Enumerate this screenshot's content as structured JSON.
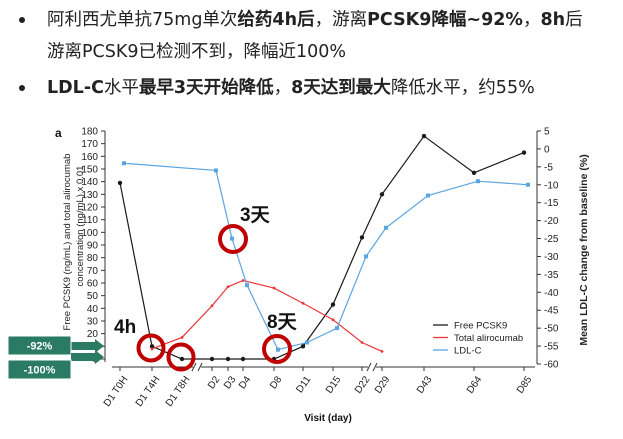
{
  "bullets": [
    {
      "line1": [
        {
          "text": "阿利西尤单抗75mg单次",
          "bold": false
        },
        {
          "text": "给药4h后",
          "bold": true
        },
        {
          "text": "，游离",
          "bold": false
        },
        {
          "text": "PCSK9降幅~92%",
          "bold": true
        },
        {
          "text": "，",
          "bold": false
        },
        {
          "text": "8h",
          "bold": true
        },
        {
          "text": "后",
          "bold": false
        }
      ],
      "line2": "游离PCSK9已检测不到，降幅近100%"
    },
    {
      "line1": [
        {
          "text": "LDL-C",
          "bold": true
        },
        {
          "text": "水平",
          "bold": false
        },
        {
          "text": "最早3天开始降低",
          "bold": true
        },
        {
          "text": "，",
          "bold": false
        },
        {
          "text": "8天达到最大",
          "bold": true
        },
        {
          "text": "降低水平，约55%",
          "bold": false
        }
      ]
    }
  ],
  "chart_data": {
    "type": "line",
    "panel_label": "a",
    "categories": [
      "D1 T0H",
      "D1 T4H",
      "D1 T8H",
      "D2",
      "D3",
      "D4",
      "D8",
      "D11",
      "D15",
      "D22",
      "D29",
      "D43",
      "D64",
      "D85"
    ],
    "xlabel": "Visit (day)",
    "ylabel_left_line1": "Free PCSK9 (ng/mL) and total alirocumab",
    "ylabel_left_line2": "concentration (ng/mL) x 0.01",
    "ylabel_right": "Mean LDL-C change from baseline (%)",
    "ylim_left": [
      0,
      180
    ],
    "ylim_right": [
      -60,
      5
    ],
    "yticks_left": [
      0,
      10,
      20,
      30,
      40,
      50,
      60,
      70,
      80,
      90,
      100,
      110,
      120,
      130,
      140,
      150,
      160,
      170,
      180
    ],
    "yticks_right": [
      5,
      0,
      -5,
      -10,
      -15,
      -20,
      -25,
      -30,
      -35,
      -40,
      -45,
      -50,
      -55,
      -60
    ],
    "grid": false,
    "legend_position": "lower-right",
    "series": [
      {
        "name": "Free PCSK9",
        "axis": "left",
        "color": "#1a1a1a",
        "marker": "circle",
        "values": [
          139,
          10,
          0,
          0,
          0,
          0,
          0,
          10,
          43,
          96,
          130,
          176,
          147,
          163
        ]
      },
      {
        "name": "Total alirocumab",
        "axis": "left",
        "color": "#e8383d",
        "marker": "dot",
        "values": [
          null,
          8,
          17,
          42,
          57,
          62,
          56,
          44,
          31,
          13,
          6,
          null,
          null,
          null
        ]
      },
      {
        "name": "LDL-C",
        "axis": "right",
        "color": "#5ba5e0",
        "marker": "square",
        "values": [
          -4,
          null,
          null,
          -6,
          -25,
          -38,
          -56,
          -54,
          -50,
          -30,
          -22,
          -13,
          -9,
          -10
        ]
      }
    ],
    "annotations": [
      {
        "text": "4h"
      },
      {
        "text": "3天"
      },
      {
        "text": "8天"
      }
    ],
    "callouts": [
      {
        "text": "-92%"
      },
      {
        "text": "-100%"
      }
    ],
    "colors": {
      "highlight_ring": "#c00000",
      "callout_fill": "#2b7a63"
    }
  }
}
